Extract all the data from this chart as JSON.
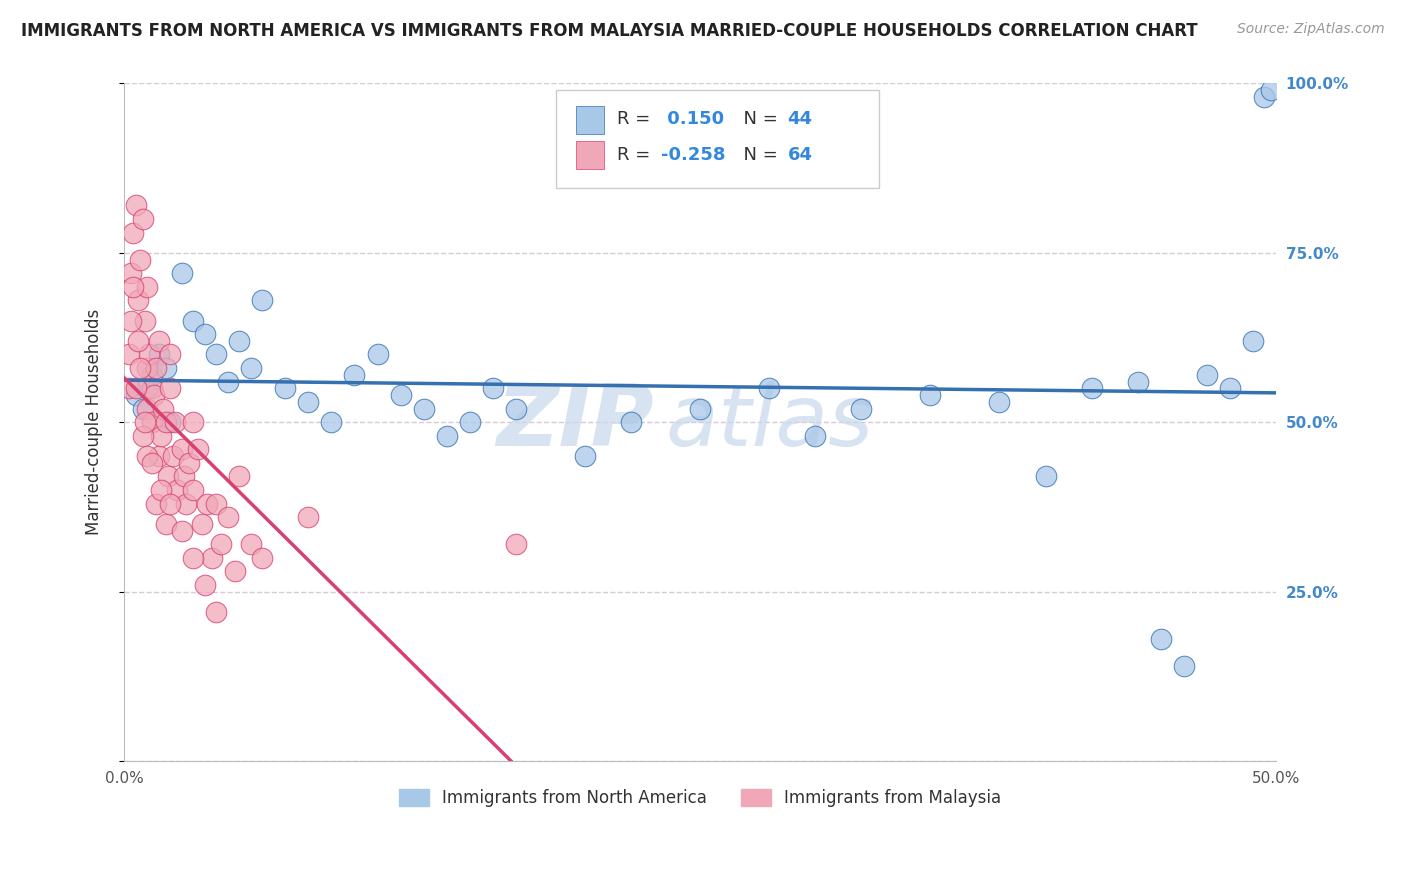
{
  "title": "IMMIGRANTS FROM NORTH AMERICA VS IMMIGRANTS FROM MALAYSIA MARRIED-COUPLE HOUSEHOLDS CORRELATION CHART",
  "source": "Source: ZipAtlas.com",
  "ylabel": "Married-couple Households",
  "R_blue": 0.15,
  "N_blue": 44,
  "R_pink": -0.258,
  "N_pink": 64,
  "xlim": [
    0.0,
    0.5
  ],
  "ylim": [
    0.0,
    1.0
  ],
  "blue_color": "#A8C8E8",
  "pink_color": "#F0A8B8",
  "blue_line_color": "#3570B0",
  "pink_line_color": "#D84070",
  "grid_color": "#D8C8D8",
  "background_color": "#FFFFFF",
  "watermark": "ZIPatlas",
  "watermark_color": "#C8D8EC",
  "legend_label_blue": "Immigrants from North America",
  "legend_label_pink": "Immigrants from Malaysia",
  "blue_scatter_x": [
    0.005,
    0.008,
    0.01,
    0.012,
    0.015,
    0.018,
    0.02,
    0.025,
    0.03,
    0.035,
    0.04,
    0.045,
    0.05,
    0.055,
    0.06,
    0.07,
    0.08,
    0.09,
    0.1,
    0.11,
    0.12,
    0.13,
    0.14,
    0.15,
    0.16,
    0.17,
    0.2,
    0.22,
    0.25,
    0.28,
    0.3,
    0.32,
    0.35,
    0.38,
    0.4,
    0.42,
    0.44,
    0.45,
    0.46,
    0.47,
    0.48,
    0.49,
    0.495,
    0.498
  ],
  "blue_scatter_y": [
    0.54,
    0.52,
    0.55,
    0.57,
    0.6,
    0.58,
    0.5,
    0.72,
    0.65,
    0.63,
    0.6,
    0.56,
    0.62,
    0.58,
    0.68,
    0.55,
    0.53,
    0.5,
    0.57,
    0.6,
    0.54,
    0.52,
    0.48,
    0.5,
    0.55,
    0.52,
    0.45,
    0.5,
    0.52,
    0.55,
    0.48,
    0.52,
    0.54,
    0.53,
    0.42,
    0.55,
    0.56,
    0.18,
    0.14,
    0.57,
    0.55,
    0.62,
    0.98,
    0.99
  ],
  "pink_scatter_x": [
    0.002,
    0.003,
    0.004,
    0.005,
    0.006,
    0.007,
    0.008,
    0.009,
    0.01,
    0.01,
    0.01,
    0.011,
    0.012,
    0.012,
    0.013,
    0.014,
    0.015,
    0.015,
    0.016,
    0.017,
    0.018,
    0.019,
    0.02,
    0.02,
    0.021,
    0.022,
    0.023,
    0.025,
    0.026,
    0.027,
    0.028,
    0.03,
    0.03,
    0.032,
    0.034,
    0.036,
    0.038,
    0.04,
    0.042,
    0.045,
    0.048,
    0.05,
    0.055,
    0.06,
    0.002,
    0.003,
    0.004,
    0.005,
    0.006,
    0.007,
    0.008,
    0.009,
    0.01,
    0.012,
    0.014,
    0.016,
    0.018,
    0.02,
    0.025,
    0.03,
    0.035,
    0.04,
    0.08,
    0.17
  ],
  "pink_scatter_y": [
    0.55,
    0.72,
    0.78,
    0.82,
    0.68,
    0.74,
    0.8,
    0.65,
    0.7,
    0.58,
    0.52,
    0.6,
    0.55,
    0.5,
    0.54,
    0.58,
    0.62,
    0.45,
    0.48,
    0.52,
    0.5,
    0.42,
    0.55,
    0.6,
    0.45,
    0.5,
    0.4,
    0.46,
    0.42,
    0.38,
    0.44,
    0.5,
    0.4,
    0.46,
    0.35,
    0.38,
    0.3,
    0.38,
    0.32,
    0.36,
    0.28,
    0.42,
    0.32,
    0.3,
    0.6,
    0.65,
    0.7,
    0.55,
    0.62,
    0.58,
    0.48,
    0.5,
    0.45,
    0.44,
    0.38,
    0.4,
    0.35,
    0.38,
    0.34,
    0.3,
    0.26,
    0.22,
    0.36,
    0.32
  ]
}
